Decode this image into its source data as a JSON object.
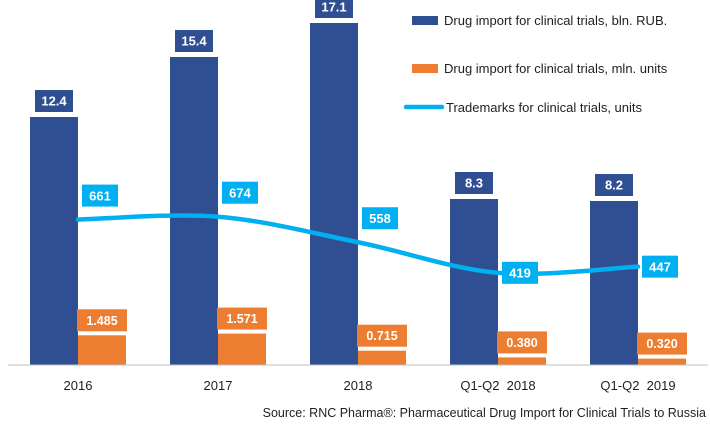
{
  "chart_data": {
    "type": "bar",
    "categories": [
      "2016",
      "2017",
      "2018",
      "Q1-Q2  2018",
      "Q1-Q2  2019"
    ],
    "series": [
      {
        "name": "Drug import for clinical trials, bln. RUB.",
        "kind": "bar",
        "axis": "left",
        "color": "#2F4F92",
        "values": [
          12.4,
          15.4,
          17.1,
          8.3,
          8.2
        ],
        "labels": [
          "12.4",
          "15.4",
          "17.1",
          "8.3",
          "8.2"
        ]
      },
      {
        "name": "Drug import for clinical trials, mln. units",
        "kind": "bar",
        "axis": "left",
        "color": "#ED7D31",
        "values": [
          1.485,
          1.571,
          0.715,
          0.38,
          0.32
        ],
        "labels": [
          "1.485",
          "1.571",
          "0.715",
          "0.380",
          "0.320"
        ]
      },
      {
        "name": "Trademarks for clinical trials, units",
        "kind": "line",
        "axis": "right",
        "color": "#00B0F0",
        "values": [
          661,
          674,
          558,
          419,
          447
        ],
        "labels": [
          "661",
          "674",
          "558",
          "419",
          "447"
        ]
      }
    ],
    "ylim": [
      0,
      18
    ],
    "y2lim": [
      0,
      1000
    ],
    "grid": false,
    "legend": "top-right"
  },
  "source": "Source: RNC Pharma®:  Pharmaceutical Drug Import for Clinical Trials to Russia"
}
